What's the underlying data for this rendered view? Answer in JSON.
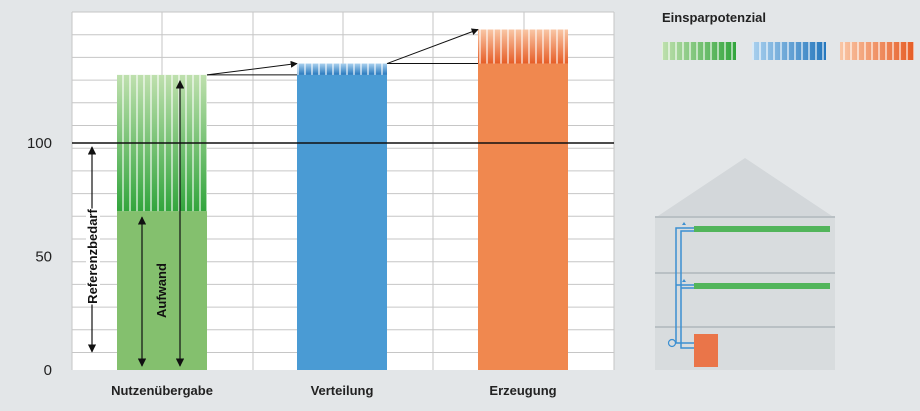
{
  "chart_data": {
    "type": "bar",
    "categories": [
      "Nutzenübergabe",
      "Verteilung",
      "Erzeugung"
    ],
    "base_values": [
      70,
      130,
      135
    ],
    "savings_values": [
      60,
      5,
      15
    ],
    "reference_value": 100,
    "yticks": [
      0,
      50,
      100
    ],
    "ylim": [
      0,
      160
    ],
    "grid": true,
    "legend_title": "Einsparpotenzial",
    "annotations": [
      "Referenzbedarf",
      "Aufwand"
    ],
    "colors": {
      "green_base": "#84c06e",
      "green_savings_light": "#bfe0ae",
      "green_savings_dark": "#32a53d",
      "blue_base": "#4a9bd4",
      "blue_savings_light": "#a9d0ee",
      "blue_savings_dark": "#2577bd",
      "orange_base": "#f0884f",
      "orange_savings_light": "#f9c6a5",
      "orange_savings_dark": "#e65d26"
    }
  }
}
